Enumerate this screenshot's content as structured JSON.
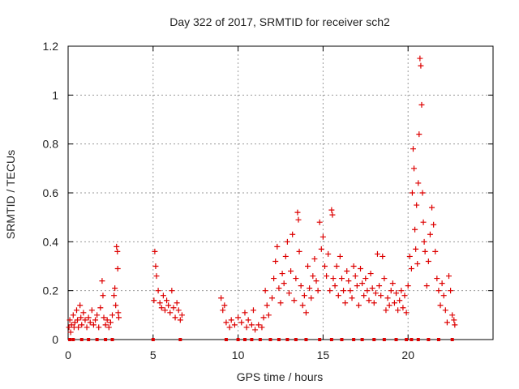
{
  "chart_data": {
    "type": "scatter",
    "title": "Day 322 of 2017, SRMTID for receiver sch2",
    "xlabel": "GPS time / hours",
    "ylabel": "SRMTID / TECUs",
    "xlim": [
      0,
      25
    ],
    "ylim": [
      0,
      1.2
    ],
    "grid": true,
    "x_ticks": [
      0,
      5,
      10,
      15,
      20
    ],
    "x_tick_labels": [
      "0",
      "5",
      "10",
      "15",
      "20"
    ],
    "y_ticks": [
      0,
      0.2,
      0.4,
      0.6,
      0.8,
      1,
      1.2
    ],
    "y_tick_labels": [
      "0",
      "0.2",
      "0.4",
      "0.6",
      "0.8",
      "1",
      "1.2"
    ],
    "colors": {
      "marker": "#dd0000",
      "grid": "#999999",
      "axis": "#000000"
    },
    "series": [
      {
        "name": "sch2",
        "marker": "plus",
        "points": [
          [
            0.05,
            0.05
          ],
          [
            0.1,
            0.08
          ],
          [
            0.15,
            0.03
          ],
          [
            0.2,
            0.06
          ],
          [
            0.3,
            0.1
          ],
          [
            0.35,
            0.05
          ],
          [
            0.4,
            0.07
          ],
          [
            0.5,
            0.12
          ],
          [
            0.55,
            0.08
          ],
          [
            0.6,
            0.05
          ],
          [
            0.7,
            0.14
          ],
          [
            0.75,
            0.09
          ],
          [
            0.8,
            0.06
          ],
          [
            0.9,
            0.11
          ],
          [
            1.0,
            0.08
          ],
          [
            1.1,
            0.05
          ],
          [
            1.2,
            0.09
          ],
          [
            1.3,
            0.07
          ],
          [
            1.4,
            0.12
          ],
          [
            1.5,
            0.06
          ],
          [
            1.6,
            0.08
          ],
          [
            1.7,
            0.1
          ],
          [
            1.8,
            0.05
          ],
          [
            1.9,
            0.13
          ],
          [
            2.0,
            0.24
          ],
          [
            2.05,
            0.18
          ],
          [
            2.1,
            0.09
          ],
          [
            2.2,
            0.06
          ],
          [
            2.3,
            0.08
          ],
          [
            2.4,
            0.05
          ],
          [
            2.5,
            0.07
          ],
          [
            2.6,
            0.1
          ],
          [
            2.7,
            0.18
          ],
          [
            2.75,
            0.21
          ],
          [
            2.8,
            0.14
          ],
          [
            2.85,
            0.38
          ],
          [
            2.9,
            0.36
          ],
          [
            2.92,
            0.29
          ],
          [
            2.95,
            0.11
          ],
          [
            2.98,
            0.09
          ],
          [
            5.05,
            0.16
          ],
          [
            5.1,
            0.36
          ],
          [
            5.15,
            0.3
          ],
          [
            5.2,
            0.26
          ],
          [
            5.3,
            0.2
          ],
          [
            5.4,
            0.15
          ],
          [
            5.5,
            0.13
          ],
          [
            5.6,
            0.18
          ],
          [
            5.7,
            0.12
          ],
          [
            5.8,
            0.16
          ],
          [
            5.9,
            0.14
          ],
          [
            6.0,
            0.11
          ],
          [
            6.1,
            0.2
          ],
          [
            6.2,
            0.13
          ],
          [
            6.3,
            0.09
          ],
          [
            6.4,
            0.15
          ],
          [
            6.5,
            0.12
          ],
          [
            6.6,
            0.08
          ],
          [
            6.7,
            0.1
          ],
          [
            9.0,
            0.17
          ],
          [
            9.1,
            0.12
          ],
          [
            9.2,
            0.14
          ],
          [
            9.3,
            0.07
          ],
          [
            9.5,
            0.05
          ],
          [
            9.6,
            0.08
          ],
          [
            9.8,
            0.06
          ],
          [
            10.0,
            0.09
          ],
          [
            10.2,
            0.07
          ],
          [
            10.4,
            0.11
          ],
          [
            10.5,
            0.05
          ],
          [
            10.6,
            0.08
          ],
          [
            10.8,
            0.06
          ],
          [
            10.9,
            0.12
          ],
          [
            11.0,
            0.04
          ],
          [
            11.2,
            0.06
          ],
          [
            11.4,
            0.05
          ],
          [
            11.5,
            0.09
          ],
          [
            11.6,
            0.2
          ],
          [
            11.7,
            0.14
          ],
          [
            11.8,
            0.1
          ],
          [
            12.0,
            0.17
          ],
          [
            12.1,
            0.25
          ],
          [
            12.2,
            0.32
          ],
          [
            12.3,
            0.38
          ],
          [
            12.4,
            0.21
          ],
          [
            12.5,
            0.15
          ],
          [
            12.6,
            0.27
          ],
          [
            12.7,
            0.23
          ],
          [
            12.8,
            0.34
          ],
          [
            12.9,
            0.4
          ],
          [
            13.0,
            0.19
          ],
          [
            13.1,
            0.28
          ],
          [
            13.2,
            0.43
          ],
          [
            13.3,
            0.16
          ],
          [
            13.4,
            0.25
          ],
          [
            13.5,
            0.52
          ],
          [
            13.55,
            0.49
          ],
          [
            13.6,
            0.36
          ],
          [
            13.7,
            0.22
          ],
          [
            13.8,
            0.14
          ],
          [
            13.9,
            0.18
          ],
          [
            14.0,
            0.11
          ],
          [
            14.1,
            0.3
          ],
          [
            14.2,
            0.21
          ],
          [
            14.3,
            0.17
          ],
          [
            14.4,
            0.26
          ],
          [
            14.5,
            0.33
          ],
          [
            14.6,
            0.24
          ],
          [
            14.7,
            0.2
          ],
          [
            14.8,
            0.48
          ],
          [
            14.9,
            0.37
          ],
          [
            15.0,
            0.42
          ],
          [
            15.1,
            0.3
          ],
          [
            15.2,
            0.26
          ],
          [
            15.3,
            0.35
          ],
          [
            15.4,
            0.2
          ],
          [
            15.5,
            0.53
          ],
          [
            15.55,
            0.51
          ],
          [
            15.6,
            0.25
          ],
          [
            15.7,
            0.22
          ],
          [
            15.8,
            0.3
          ],
          [
            15.9,
            0.18
          ],
          [
            16.0,
            0.34
          ],
          [
            16.1,
            0.25
          ],
          [
            16.2,
            0.2
          ],
          [
            16.3,
            0.15
          ],
          [
            16.4,
            0.28
          ],
          [
            16.5,
            0.24
          ],
          [
            16.6,
            0.2
          ],
          [
            16.7,
            0.17
          ],
          [
            16.8,
            0.3
          ],
          [
            16.9,
            0.26
          ],
          [
            17.0,
            0.22
          ],
          [
            17.1,
            0.14
          ],
          [
            17.2,
            0.29
          ],
          [
            17.3,
            0.23
          ],
          [
            17.4,
            0.18
          ],
          [
            17.5,
            0.25
          ],
          [
            17.6,
            0.2
          ],
          [
            17.7,
            0.16
          ],
          [
            17.8,
            0.27
          ],
          [
            17.9,
            0.21
          ],
          [
            18.0,
            0.15
          ],
          [
            18.1,
            0.19
          ],
          [
            18.2,
            0.35
          ],
          [
            18.3,
            0.22
          ],
          [
            18.4,
            0.18
          ],
          [
            18.5,
            0.34
          ],
          [
            18.6,
            0.25
          ],
          [
            18.7,
            0.12
          ],
          [
            18.8,
            0.17
          ],
          [
            18.9,
            0.14
          ],
          [
            19.0,
            0.2
          ],
          [
            19.1,
            0.23
          ],
          [
            19.2,
            0.15
          ],
          [
            19.3,
            0.19
          ],
          [
            19.4,
            0.12
          ],
          [
            19.5,
            0.16
          ],
          [
            19.6,
            0.2
          ],
          [
            19.7,
            0.13
          ],
          [
            19.8,
            0.18
          ],
          [
            19.9,
            0.11
          ],
          [
            20.0,
            0.22
          ],
          [
            20.1,
            0.34
          ],
          [
            20.2,
            0.29
          ],
          [
            20.25,
            0.6
          ],
          [
            20.3,
            0.78
          ],
          [
            20.35,
            0.7
          ],
          [
            20.4,
            0.45
          ],
          [
            20.45,
            0.37
          ],
          [
            20.5,
            0.55
          ],
          [
            20.55,
            0.31
          ],
          [
            20.6,
            0.64
          ],
          [
            20.65,
            0.84
          ],
          [
            20.7,
            1.15
          ],
          [
            20.75,
            1.12
          ],
          [
            20.8,
            0.96
          ],
          [
            20.85,
            0.6
          ],
          [
            20.9,
            0.48
          ],
          [
            20.95,
            0.4
          ],
          [
            21.0,
            0.36
          ],
          [
            21.1,
            0.22
          ],
          [
            21.2,
            0.32
          ],
          [
            21.3,
            0.43
          ],
          [
            21.4,
            0.54
          ],
          [
            21.5,
            0.47
          ],
          [
            21.6,
            0.36
          ],
          [
            21.7,
            0.25
          ],
          [
            21.8,
            0.2
          ],
          [
            21.9,
            0.14
          ],
          [
            22.0,
            0.23
          ],
          [
            22.1,
            0.18
          ],
          [
            22.2,
            0.12
          ],
          [
            22.3,
            0.07
          ],
          [
            22.4,
            0.26
          ],
          [
            22.5,
            0.2
          ],
          [
            22.6,
            0.1
          ],
          [
            22.7,
            0.08
          ],
          [
            22.75,
            0.06
          ]
        ]
      }
    ],
    "zero_markers_x": [
      0.1,
      0.3,
      0.8,
      1.2,
      1.7,
      2.2,
      2.6,
      5.0,
      6.6,
      9.3,
      10.0,
      10.4,
      10.8,
      11.3,
      11.9,
      12.4,
      12.9,
      13.4,
      14.0,
      14.8,
      15.5,
      16.1,
      16.8,
      17.3,
      18.0,
      18.6,
      19.3,
      19.9,
      20.2,
      20.6,
      21.2,
      21.8,
      22.6
    ]
  }
}
